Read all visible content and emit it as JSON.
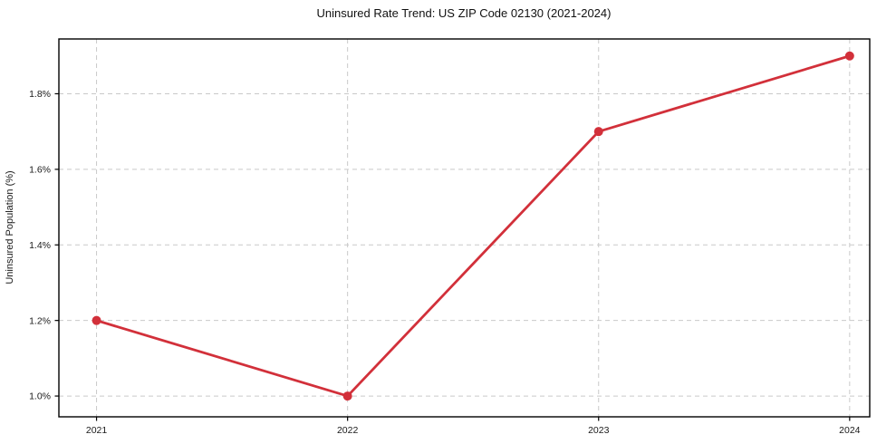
{
  "chart_data": {
    "type": "line",
    "title": "Uninsured Rate Trend: US ZIP Code 02130 (2021-2024)",
    "xlabel": "",
    "ylabel": "Uninsured Population (%)",
    "x": [
      2021,
      2022,
      2023,
      2024
    ],
    "series": [
      {
        "name": "Uninsured Population (%)",
        "values": [
          1.2,
          1.0,
          1.7,
          1.9
        ]
      }
    ],
    "values": [
      1.2,
      1.0,
      1.7,
      1.9
    ],
    "xticks": [
      2021,
      2022,
      2023,
      2024
    ],
    "xtick_labels": [
      "2021",
      "2022",
      "2023",
      "2024"
    ],
    "yticks": [
      1.0,
      1.2,
      1.4,
      1.6,
      1.8
    ],
    "ytick_labels": [
      "1.0%",
      "1.2%",
      "1.4%",
      "1.6%",
      "1.8%"
    ],
    "xlim": [
      2020.85,
      2024.08
    ],
    "ylim": [
      0.945,
      1.945
    ],
    "grid": true,
    "grid_style": "dashed",
    "legend": "none",
    "line_color": "#d2303a",
    "marker_color": "#d2303a",
    "grid_color": "#c9c9c9",
    "axis_color": "#000000",
    "text_color": "#1a1a1a"
  }
}
